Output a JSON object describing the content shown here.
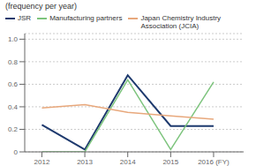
{
  "chart_data": {
    "type": "line",
    "title": "(frequency per year)",
    "x": [
      2012,
      2013,
      2014,
      2015,
      2016
    ],
    "xlim": [
      2011.6,
      2016.7
    ],
    "xticks": [
      2012,
      2013,
      2014,
      2015,
      {
        "value": 2016,
        "label": "2016 (FY)"
      }
    ],
    "ylim": [
      0,
      1.05
    ],
    "yticks": [
      0,
      0.2,
      0.4,
      0.6,
      0.8,
      {
        "value": 1.0,
        "label": "1.0"
      }
    ],
    "grid": true,
    "legend": "upper left",
    "series": [
      {
        "name": "JSR",
        "color": "#1e3a6e",
        "values": [
          0.24,
          0.02,
          0.68,
          0.23,
          0.23
        ]
      },
      {
        "name": "Manufacturing partners",
        "color": "#7dc47d",
        "values": [
          0.0,
          0.0,
          0.64,
          0.02,
          0.62
        ]
      },
      {
        "name": "Japan Chemistry Industry\nAssociation (JCIA)",
        "color": "#e8a87c",
        "values": [
          0.39,
          0.42,
          0.35,
          0.32,
          0.29
        ]
      }
    ]
  }
}
